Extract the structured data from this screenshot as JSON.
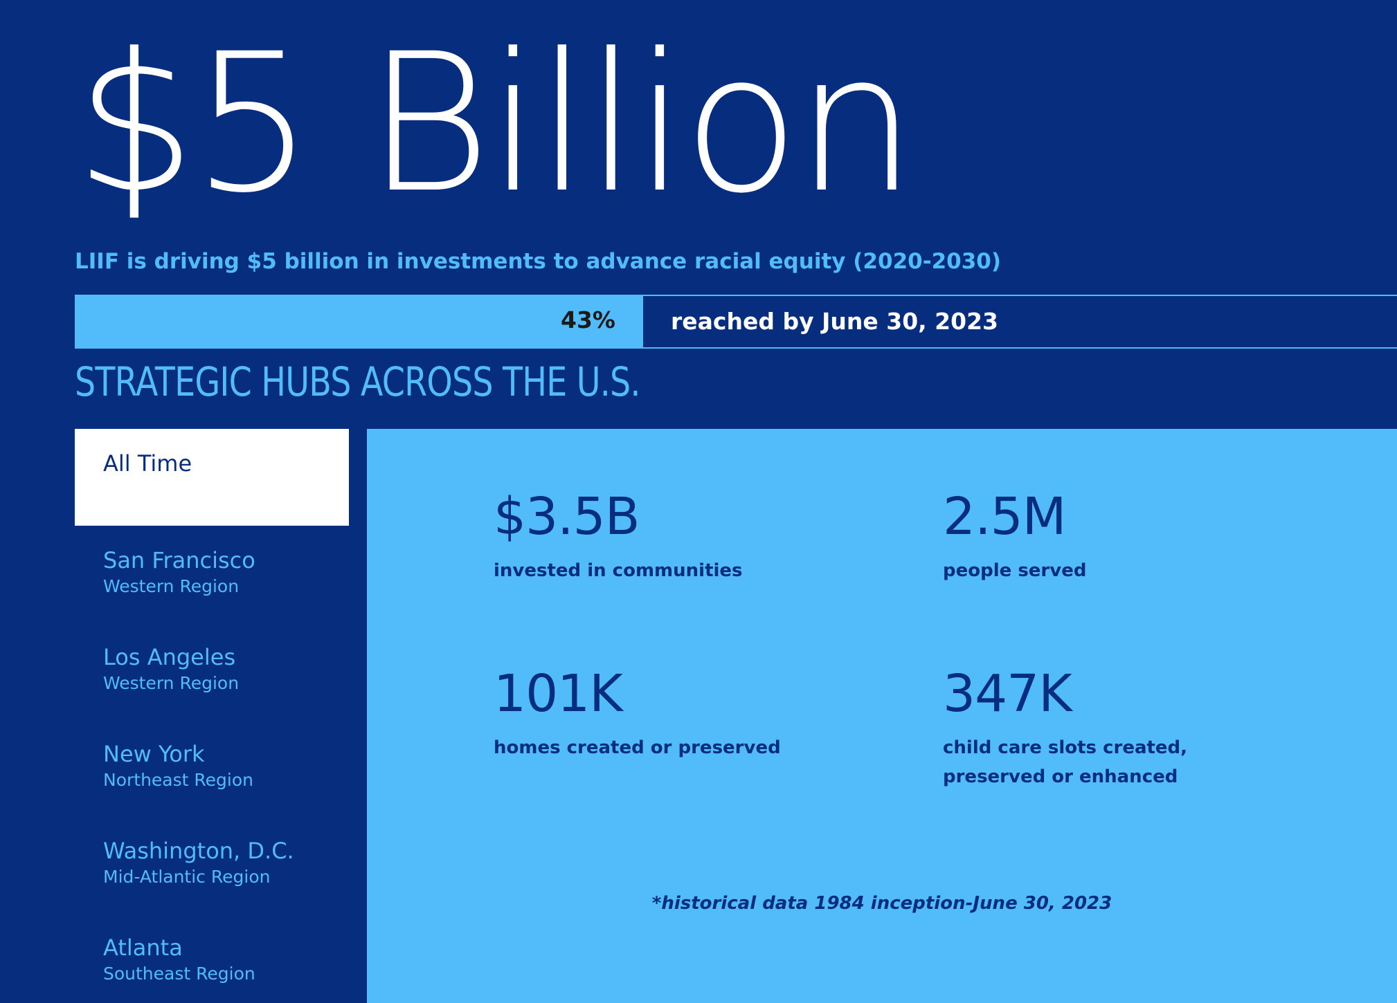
{
  "hero": {
    "title": "$5 Billion",
    "subtitle": "LIIF is driving $5 billion in investments to advance racial equity (2020-2030)"
  },
  "progress": {
    "percent_value": 43,
    "percent_label": "43%",
    "caption": "reached by June 30, 2023"
  },
  "hubs": {
    "title": "STRATEGIC HUBS ACROSS THE U.S.",
    "items": [
      {
        "city": "All Time",
        "region": ""
      },
      {
        "city": "San Francisco",
        "region": "Western Region"
      },
      {
        "city": "Los Angeles",
        "region": "Western Region"
      },
      {
        "city": "New York",
        "region": "Northeast Region"
      },
      {
        "city": "Washington, D.C.",
        "region": "Mid-Atlantic Region"
      },
      {
        "city": "Atlanta",
        "region": "Southeast Region"
      }
    ],
    "selected": "All Time"
  },
  "stats": [
    {
      "value": "$3.5B",
      "label": "invested in communities"
    },
    {
      "value": "2.5M",
      "label": "people served"
    },
    {
      "value": "101K",
      "label": "homes created or preserved"
    },
    {
      "value": "347K",
      "label": "child care slots created, preserved or enhanced"
    }
  ],
  "footnote": "*historical data 1984 inception-June 30, 2023",
  "colors": {
    "background": "#072d7e",
    "accent": "#52bcfb",
    "white": "#ffffff"
  }
}
